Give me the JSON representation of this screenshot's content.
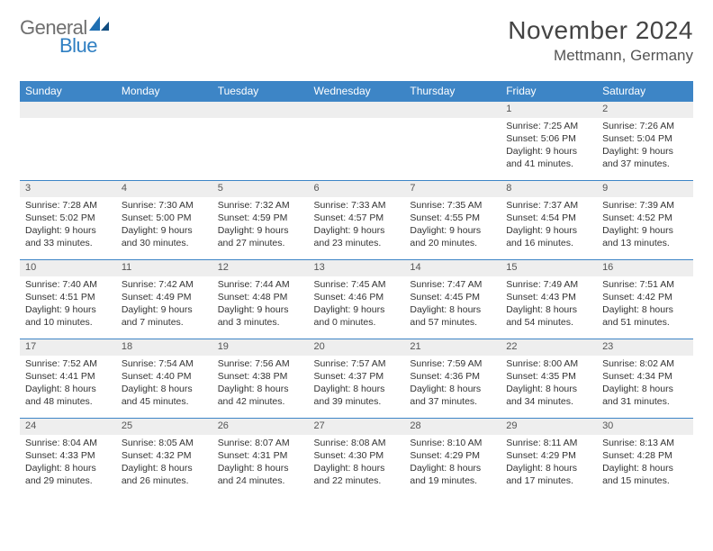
{
  "logo": {
    "general": "General",
    "blue": "Blue"
  },
  "title": "November 2024",
  "location": "Mettmann, Germany",
  "colors": {
    "header_bg": "#3d85c6",
    "header_text": "#ffffff",
    "day_bg": "#eeeeee",
    "border": "#3d85c6",
    "body_text": "#333333"
  },
  "day_headers": [
    "Sunday",
    "Monday",
    "Tuesday",
    "Wednesday",
    "Thursday",
    "Friday",
    "Saturday"
  ],
  "weeks": [
    [
      null,
      null,
      null,
      null,
      null,
      {
        "d": "1",
        "sr": "7:25 AM",
        "ss": "5:06 PM",
        "dl": "9 hours and 41 minutes."
      },
      {
        "d": "2",
        "sr": "7:26 AM",
        "ss": "5:04 PM",
        "dl": "9 hours and 37 minutes."
      }
    ],
    [
      {
        "d": "3",
        "sr": "7:28 AM",
        "ss": "5:02 PM",
        "dl": "9 hours and 33 minutes."
      },
      {
        "d": "4",
        "sr": "7:30 AM",
        "ss": "5:00 PM",
        "dl": "9 hours and 30 minutes."
      },
      {
        "d": "5",
        "sr": "7:32 AM",
        "ss": "4:59 PM",
        "dl": "9 hours and 27 minutes."
      },
      {
        "d": "6",
        "sr": "7:33 AM",
        "ss": "4:57 PM",
        "dl": "9 hours and 23 minutes."
      },
      {
        "d": "7",
        "sr": "7:35 AM",
        "ss": "4:55 PM",
        "dl": "9 hours and 20 minutes."
      },
      {
        "d": "8",
        "sr": "7:37 AM",
        "ss": "4:54 PM",
        "dl": "9 hours and 16 minutes."
      },
      {
        "d": "9",
        "sr": "7:39 AM",
        "ss": "4:52 PM",
        "dl": "9 hours and 13 minutes."
      }
    ],
    [
      {
        "d": "10",
        "sr": "7:40 AM",
        "ss": "4:51 PM",
        "dl": "9 hours and 10 minutes."
      },
      {
        "d": "11",
        "sr": "7:42 AM",
        "ss": "4:49 PM",
        "dl": "9 hours and 7 minutes."
      },
      {
        "d": "12",
        "sr": "7:44 AM",
        "ss": "4:48 PM",
        "dl": "9 hours and 3 minutes."
      },
      {
        "d": "13",
        "sr": "7:45 AM",
        "ss": "4:46 PM",
        "dl": "9 hours and 0 minutes."
      },
      {
        "d": "14",
        "sr": "7:47 AM",
        "ss": "4:45 PM",
        "dl": "8 hours and 57 minutes."
      },
      {
        "d": "15",
        "sr": "7:49 AM",
        "ss": "4:43 PM",
        "dl": "8 hours and 54 minutes."
      },
      {
        "d": "16",
        "sr": "7:51 AM",
        "ss": "4:42 PM",
        "dl": "8 hours and 51 minutes."
      }
    ],
    [
      {
        "d": "17",
        "sr": "7:52 AM",
        "ss": "4:41 PM",
        "dl": "8 hours and 48 minutes."
      },
      {
        "d": "18",
        "sr": "7:54 AM",
        "ss": "4:40 PM",
        "dl": "8 hours and 45 minutes."
      },
      {
        "d": "19",
        "sr": "7:56 AM",
        "ss": "4:38 PM",
        "dl": "8 hours and 42 minutes."
      },
      {
        "d": "20",
        "sr": "7:57 AM",
        "ss": "4:37 PM",
        "dl": "8 hours and 39 minutes."
      },
      {
        "d": "21",
        "sr": "7:59 AM",
        "ss": "4:36 PM",
        "dl": "8 hours and 37 minutes."
      },
      {
        "d": "22",
        "sr": "8:00 AM",
        "ss": "4:35 PM",
        "dl": "8 hours and 34 minutes."
      },
      {
        "d": "23",
        "sr": "8:02 AM",
        "ss": "4:34 PM",
        "dl": "8 hours and 31 minutes."
      }
    ],
    [
      {
        "d": "24",
        "sr": "8:04 AM",
        "ss": "4:33 PM",
        "dl": "8 hours and 29 minutes."
      },
      {
        "d": "25",
        "sr": "8:05 AM",
        "ss": "4:32 PM",
        "dl": "8 hours and 26 minutes."
      },
      {
        "d": "26",
        "sr": "8:07 AM",
        "ss": "4:31 PM",
        "dl": "8 hours and 24 minutes."
      },
      {
        "d": "27",
        "sr": "8:08 AM",
        "ss": "4:30 PM",
        "dl": "8 hours and 22 minutes."
      },
      {
        "d": "28",
        "sr": "8:10 AM",
        "ss": "4:29 PM",
        "dl": "8 hours and 19 minutes."
      },
      {
        "d": "29",
        "sr": "8:11 AM",
        "ss": "4:29 PM",
        "dl": "8 hours and 17 minutes."
      },
      {
        "d": "30",
        "sr": "8:13 AM",
        "ss": "4:28 PM",
        "dl": "8 hours and 15 minutes."
      }
    ]
  ],
  "labels": {
    "sunrise": "Sunrise: ",
    "sunset": "Sunset: ",
    "daylight": "Daylight: "
  }
}
